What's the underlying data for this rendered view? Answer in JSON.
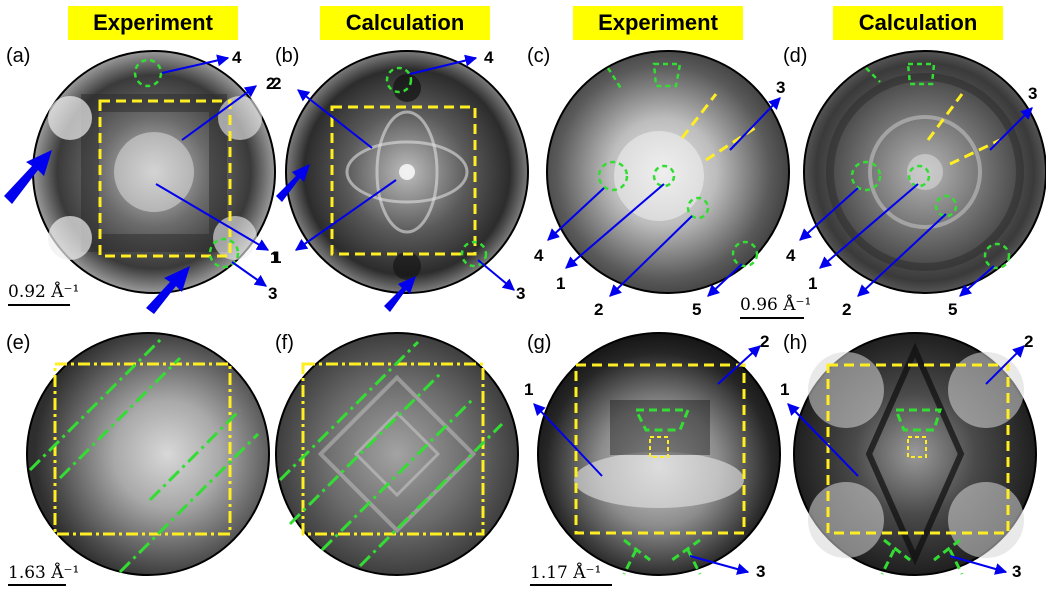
{
  "headers": {
    "h1": "Experiment",
    "h2": "Calculation",
    "h3": "Experiment",
    "h4": "Calculation"
  },
  "panels": {
    "a": "(a)",
    "b": "(b)",
    "c": "(c)",
    "d": "(d)",
    "e": "(e)",
    "f": "(f)",
    "g": "(g)",
    "h": "(h)"
  },
  "markers": {
    "a1": "1",
    "a2": "2",
    "a3": "3",
    "a4": "4",
    "b1": "1",
    "b2": "2",
    "b3": "3",
    "b4": "4",
    "c1": "1",
    "c2": "2",
    "c3": "3",
    "c4": "4",
    "c5": "5",
    "d1": "1",
    "d2": "2",
    "d3": "3",
    "d4": "4",
    "d5": "5",
    "g1": "1",
    "g2": "2",
    "g3": "3",
    "h1": "1",
    "h2": "2",
    "h3": "3"
  },
  "scales": {
    "s1": "0.92 Å⁻¹",
    "s2": "0.96 Å⁻¹",
    "s3": "1.63 Å⁻¹",
    "s4": "1.17 Å⁻¹"
  },
  "colors": {
    "header_bg": "#ffff00",
    "arrow": "#0000ee",
    "circle_marker": "#33dd33",
    "box": "#ffee22"
  }
}
